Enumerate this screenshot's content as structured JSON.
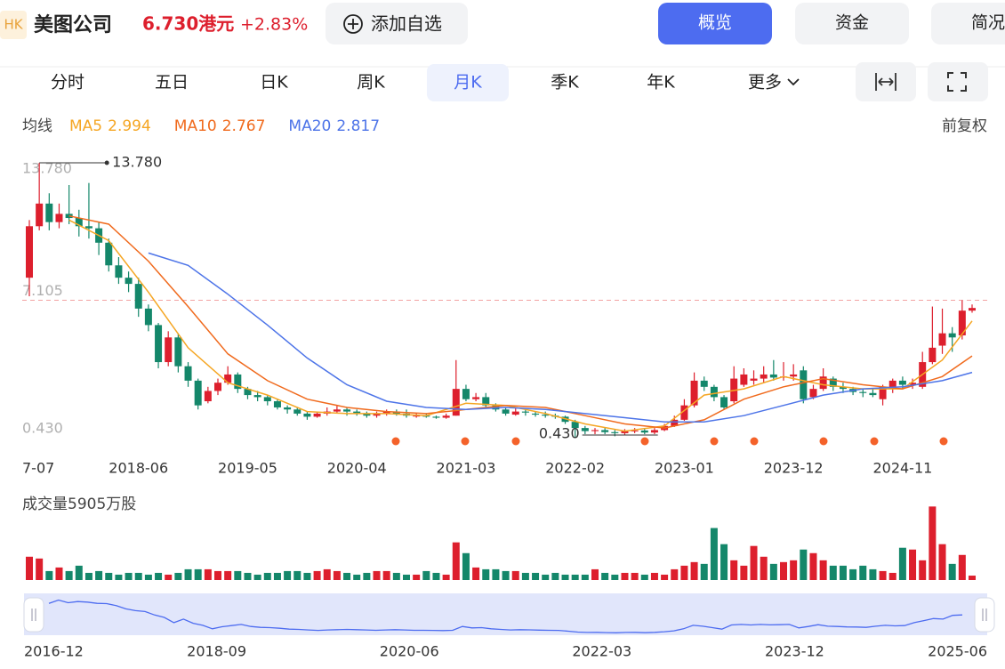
{
  "header": {
    "badge": "HK",
    "name": "美图公司",
    "price": "6.730港元",
    "change": "+2.83%",
    "watch_button": "添加自选",
    "nav": [
      "概览",
      "资金",
      "简况"
    ]
  },
  "tabs": [
    "分时",
    "五日",
    "日K",
    "周K",
    "月K",
    "季K",
    "年K",
    "更多"
  ],
  "active_tab": 4,
  "legend_title": "均线",
  "adjust": "前复权",
  "chart_data": [
    {
      "type": "candlestick",
      "up_color": "#dd1f2d",
      "down_color": "#14876a",
      "categories": [
        "7-07",
        null,
        null,
        null,
        null,
        null,
        null,
        null,
        null,
        null,
        null,
        "2018-06",
        null,
        null,
        null,
        null,
        null,
        null,
        null,
        null,
        null,
        null,
        "2019-05",
        null,
        null,
        null,
        null,
        null,
        null,
        null,
        null,
        null,
        null,
        "2020-04",
        null,
        null,
        null,
        null,
        null,
        null,
        null,
        null,
        null,
        null,
        "2021-03",
        null,
        null,
        null,
        null,
        null,
        null,
        null,
        null,
        null,
        null,
        "2022-02",
        null,
        null,
        null,
        null,
        null,
        null,
        null,
        null,
        null,
        null,
        "2023-01",
        null,
        null,
        null,
        null,
        null,
        null,
        null,
        null,
        null,
        null,
        "2023-12",
        null,
        null,
        null,
        null,
        null,
        null,
        null,
        null,
        null,
        null,
        "2024-11",
        null,
        null,
        null,
        null,
        null,
        null,
        null
      ],
      "open": [
        8.2,
        10.7,
        11.8,
        10.9,
        11.3,
        11.1,
        10.7,
        10.6,
        9.9,
        8.8,
        8.2,
        7.9,
        6.7,
        5.9,
        4.1,
        5.3,
        3.9,
        3.2,
        2.2,
        2.7,
        3.1,
        3.5,
        2.8,
        2.5,
        2.4,
        2.2,
        1.9,
        1.8,
        1.6,
        1.45,
        1.6,
        1.7,
        1.8,
        1.7,
        1.6,
        1.5,
        1.6,
        1.7,
        1.6,
        1.5,
        1.5,
        1.45,
        1.4,
        1.5,
        2.8,
        2.3,
        2.4,
        2.0,
        1.8,
        1.55,
        1.7,
        1.6,
        1.55,
        1.5,
        1.45,
        1.2,
        0.9,
        0.75,
        0.8,
        0.7,
        0.65,
        0.75,
        0.78,
        0.68,
        0.8,
        1.0,
        1.3,
        2.0,
        3.2,
        2.9,
        2.4,
        2.2,
        3.0,
        3.2,
        3.3,
        3.5,
        3.35,
        3.4,
        3.7,
        2.4,
        2.8,
        3.3,
        2.9,
        2.8,
        2.65,
        2.6,
        2.3,
        2.8,
        3.2,
        3.0,
        2.9,
        4.1,
        4.9,
        5.5,
        5.4,
        6.6
      ],
      "close": [
        10.7,
        11.8,
        10.9,
        11.3,
        11.1,
        10.7,
        10.6,
        9.9,
        8.8,
        8.2,
        7.9,
        6.7,
        5.9,
        4.1,
        5.3,
        3.9,
        3.2,
        2.0,
        2.7,
        3.1,
        3.5,
        2.8,
        2.5,
        2.4,
        2.2,
        1.9,
        1.8,
        1.6,
        1.45,
        1.6,
        1.7,
        1.8,
        1.7,
        1.6,
        1.5,
        1.6,
        1.7,
        1.6,
        1.5,
        1.5,
        1.45,
        1.4,
        1.5,
        2.8,
        2.3,
        2.4,
        2.0,
        1.8,
        1.6,
        1.7,
        1.65,
        1.55,
        1.5,
        1.45,
        1.2,
        0.9,
        0.75,
        0.8,
        0.7,
        0.65,
        0.75,
        0.78,
        0.68,
        0.8,
        1.0,
        1.3,
        2.0,
        3.2,
        2.9,
        2.4,
        1.9,
        3.3,
        3.5,
        3.3,
        3.5,
        3.35,
        3.4,
        3.5,
        2.3,
        2.8,
        3.4,
        2.9,
        2.8,
        2.65,
        2.6,
        2.5,
        2.9,
        3.2,
        3.0,
        3.1,
        4.1,
        4.8,
        5.5,
        5.3,
        6.6,
        6.73
      ],
      "high": [
        11.0,
        13.78,
        12.3,
        11.8,
        12.7,
        11.5,
        12.8,
        10.9,
        10.1,
        9.2,
        8.5,
        8.2,
        6.9,
        6.0,
        5.6,
        5.5,
        4.1,
        3.3,
        2.9,
        3.3,
        3.9,
        3.6,
        2.9,
        2.7,
        2.5,
        2.3,
        2.0,
        1.9,
        1.7,
        1.7,
        1.9,
        2.0,
        1.9,
        1.8,
        1.7,
        1.7,
        1.8,
        1.8,
        1.8,
        1.6,
        1.6,
        1.5,
        1.6,
        4.2,
        3.0,
        2.6,
        2.6,
        2.1,
        1.9,
        1.9,
        1.8,
        1.7,
        1.7,
        1.6,
        1.5,
        1.3,
        1.0,
        0.9,
        0.9,
        0.8,
        0.85,
        0.9,
        0.85,
        0.9,
        1.1,
        1.5,
        2.3,
        3.6,
        3.4,
        3.0,
        2.5,
        3.9,
        3.8,
        3.7,
        3.9,
        4.2,
        4.1,
        4.0,
        3.9,
        3.0,
        3.8,
        3.4,
        3.1,
        2.9,
        2.8,
        2.8,
        3.0,
        3.3,
        3.4,
        3.3,
        4.6,
        6.8,
        6.7,
        5.8,
        7.1,
        6.9
      ],
      "low": [
        7.3,
        10.5,
        10.5,
        10.6,
        10.8,
        10.2,
        10.1,
        9.3,
        8.5,
        7.9,
        7.5,
        6.3,
        5.6,
        3.8,
        3.9,
        3.6,
        2.9,
        1.8,
        2.1,
        2.5,
        3.0,
        2.6,
        2.3,
        2.2,
        2.0,
        1.8,
        1.6,
        1.5,
        1.3,
        1.4,
        1.5,
        1.6,
        1.5,
        1.5,
        1.4,
        1.4,
        1.5,
        1.5,
        1.4,
        1.4,
        1.4,
        1.35,
        1.35,
        1.5,
        2.2,
        2.2,
        1.9,
        1.7,
        1.5,
        1.5,
        1.5,
        1.45,
        1.4,
        1.35,
        1.1,
        0.43,
        0.6,
        0.6,
        0.6,
        0.5,
        0.55,
        0.65,
        0.6,
        0.6,
        0.75,
        0.95,
        1.25,
        1.9,
        2.7,
        2.2,
        1.8,
        2.1,
        2.9,
        3.0,
        3.1,
        3.2,
        3.2,
        3.2,
        2.1,
        2.3,
        2.7,
        2.7,
        2.6,
        2.5,
        2.4,
        2.4,
        2.0,
        2.6,
        2.8,
        2.8,
        2.8,
        4.0,
        4.5,
        4.6,
        5.2,
        6.5
      ],
      "ylim": [
        0.43,
        13.78
      ],
      "yticks": [
        {
          "value": 0.43,
          "label": "0.430"
        },
        {
          "value": 7.105,
          "label": "7.105"
        },
        {
          "value": 13.78,
          "label": "13.780"
        }
      ],
      "annotations": [
        {
          "value": 13.78,
          "label": "13.780"
        },
        {
          "value": 0.43,
          "label": "0.430"
        }
      ],
      "ma": [
        {
          "name": "MA5",
          "color": "#f5a623",
          "value": 2.994,
          "x": [
            4,
            8,
            12,
            16,
            20,
            24,
            28,
            32,
            36,
            40,
            44,
            48,
            52,
            56,
            60,
            64,
            68,
            72,
            76,
            80,
            84,
            88,
            92,
            95
          ],
          "values": [
            11.0,
            10.0,
            7.5,
            4.8,
            3.1,
            2.5,
            1.7,
            1.6,
            1.6,
            1.5,
            2.1,
            2.0,
            1.6,
            1.1,
            0.75,
            1.0,
            2.5,
            2.8,
            3.4,
            3.0,
            2.8,
            2.8,
            4.2,
            6.1
          ]
        },
        {
          "name": "MA10",
          "color": "#f06a1d",
          "value": 2.767,
          "x": [
            4,
            8,
            12,
            16,
            20,
            24,
            28,
            32,
            36,
            40,
            44,
            48,
            52,
            56,
            60,
            64,
            68,
            72,
            76,
            80,
            84,
            88,
            92,
            95
          ],
          "values": [
            11.2,
            10.8,
            9.0,
            6.8,
            4.5,
            3.2,
            2.3,
            1.9,
            1.7,
            1.6,
            1.8,
            2.0,
            1.9,
            1.5,
            1.1,
            0.9,
            1.3,
            2.3,
            2.9,
            3.3,
            3.0,
            2.8,
            3.4,
            4.4
          ]
        },
        {
          "name": "MA20",
          "color": "#4d74e8",
          "value": 2.817,
          "x": [
            12,
            16,
            20,
            24,
            28,
            32,
            36,
            40,
            44,
            48,
            52,
            56,
            60,
            64,
            68,
            72,
            76,
            80,
            84,
            88,
            92,
            95
          ],
          "values": [
            9.4,
            8.8,
            7.4,
            5.9,
            4.3,
            3.0,
            2.2,
            1.9,
            1.8,
            1.9,
            1.8,
            1.6,
            1.4,
            1.2,
            1.2,
            1.5,
            2.0,
            2.5,
            2.8,
            2.9,
            3.2,
            3.6
          ]
        }
      ]
    },
    {
      "type": "bar",
      "title": "成交量5905万股",
      "ylim": [
        0,
        100000
      ],
      "values": [
        31200,
        28800,
        12000,
        16800,
        12000,
        19200,
        9600,
        12000,
        9600,
        7200,
        9600,
        9600,
        7200,
        9600,
        7200,
        9600,
        14400,
        14400,
        14400,
        12000,
        12000,
        12000,
        9600,
        7200,
        9600,
        9600,
        12000,
        12000,
        9600,
        12000,
        14400,
        12000,
        9600,
        7200,
        9600,
        12000,
        12000,
        9600,
        7200,
        7200,
        12000,
        9600,
        7200,
        50400,
        36000,
        16800,
        14400,
        14400,
        12000,
        12000,
        9600,
        9600,
        7200,
        9600,
        7200,
        7200,
        7200,
        14400,
        9600,
        7200,
        9600,
        9600,
        7200,
        9600,
        7200,
        14400,
        19200,
        24000,
        21600,
        69600,
        48000,
        26400,
        19200,
        45600,
        31200,
        21600,
        24000,
        26400,
        40800,
        36000,
        26400,
        19200,
        19200,
        14400,
        19200,
        14400,
        12000,
        9600,
        43200,
        40800,
        26400,
        98400,
        48000,
        21600,
        33600,
        5905
      ]
    }
  ],
  "navigator": {
    "labels": [
      "2016-12",
      "2018-09",
      "2020-06",
      "2022-03",
      "2023-12",
      "2025-06"
    ]
  }
}
